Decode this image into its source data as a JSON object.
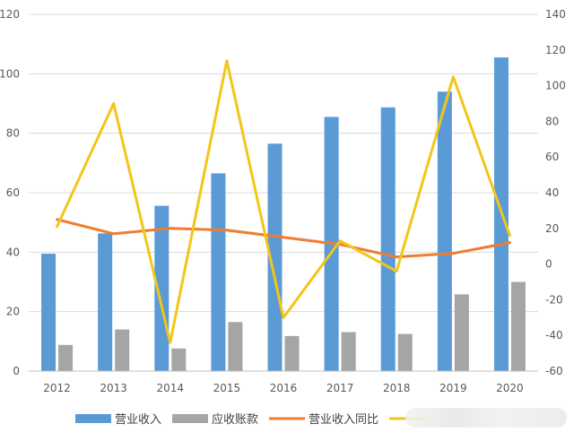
{
  "chart_data": {
    "type": "bar",
    "categories": [
      "2012",
      "2013",
      "2014",
      "2015",
      "2016",
      "2017",
      "2018",
      "2019",
      "2020"
    ],
    "series": [
      {
        "name": "营业收入",
        "kind": "bar",
        "axis": "left",
        "color": "#5b9bd5",
        "values": [
          39.5,
          46.3,
          55.6,
          66.5,
          76.5,
          85.5,
          88.7,
          94.0,
          105.5
        ]
      },
      {
        "name": "应收账款",
        "kind": "bar",
        "axis": "left",
        "color": "#a5a5a5",
        "values": [
          8.8,
          14.0,
          7.6,
          16.5,
          11.8,
          13.1,
          12.5,
          25.8,
          30.0
        ]
      },
      {
        "name": "营业收入同比",
        "kind": "line",
        "axis": "right",
        "color": "#ed7d31",
        "values": [
          25,
          17,
          20,
          19,
          15,
          11,
          4,
          6,
          12
        ]
      },
      {
        "name": "",
        "kind": "line",
        "axis": "right",
        "color": "#f2c619",
        "values": [
          21,
          90,
          -44,
          114,
          -30,
          13,
          -4,
          105,
          16
        ]
      }
    ],
    "ylim_left": [
      0,
      120
    ],
    "yticks_left": [
      "0",
      "20",
      "40",
      "60",
      "80",
      "100",
      "120"
    ],
    "ylim_right": [
      -60,
      140
    ],
    "yticks_right": [
      "-60",
      "-40",
      "-20",
      "0",
      "20",
      "40",
      "60",
      "80",
      "100",
      "120",
      "140"
    ],
    "grid": true,
    "legend_position": "bottom"
  }
}
